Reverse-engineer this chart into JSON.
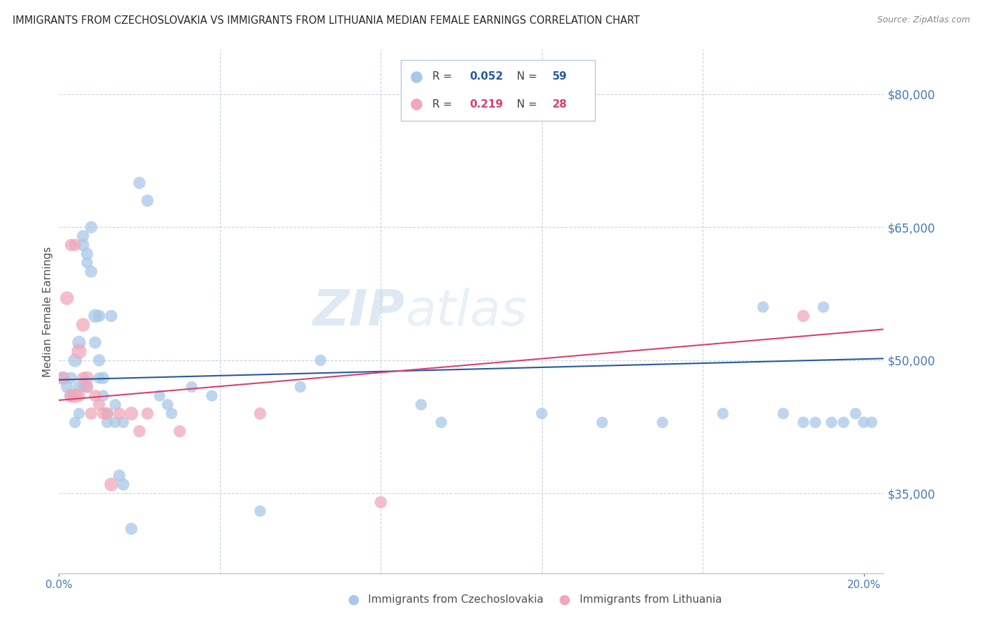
{
  "title": "IMMIGRANTS FROM CZECHOSLOVAKIA VS IMMIGRANTS FROM LITHUANIA MEDIAN FEMALE EARNINGS CORRELATION CHART",
  "source": "Source: ZipAtlas.com",
  "ylabel": "Median Female Earnings",
  "xlim": [
    0.0,
    0.205
  ],
  "ylim": [
    26000,
    85000
  ],
  "yticks": [
    35000,
    50000,
    65000,
    80000
  ],
  "ytick_labels": [
    "$35,000",
    "$50,000",
    "$65,000",
    "$80,000"
  ],
  "xticks": [
    0.0,
    0.2
  ],
  "xtick_labels": [
    "0.0%",
    "20.0%"
  ],
  "watermark_zip": "ZIP",
  "watermark_atlas": "atlas",
  "color_blue": "#a8c8e8",
  "color_pink": "#f0a8bc",
  "line_color_blue": "#2858a0",
  "line_color_pink": "#d84070",
  "background_color": "#ffffff",
  "grid_color": "#c8d4e4",
  "title_color": "#282828",
  "tick_color": "#4878b8",
  "ylabel_color": "#505050",
  "czecho_x": [
    0.001,
    0.002,
    0.003,
    0.003,
    0.004,
    0.004,
    0.005,
    0.005,
    0.005,
    0.006,
    0.006,
    0.006,
    0.007,
    0.007,
    0.007,
    0.008,
    0.008,
    0.009,
    0.009,
    0.01,
    0.01,
    0.01,
    0.011,
    0.011,
    0.012,
    0.012,
    0.013,
    0.014,
    0.014,
    0.015,
    0.016,
    0.016,
    0.018,
    0.02,
    0.022,
    0.025,
    0.027,
    0.028,
    0.033,
    0.038,
    0.05,
    0.06,
    0.065,
    0.09,
    0.095,
    0.12,
    0.135,
    0.15,
    0.165,
    0.175,
    0.18,
    0.185,
    0.188,
    0.19,
    0.192,
    0.195,
    0.198,
    0.2,
    0.202
  ],
  "czecho_y": [
    48000,
    47000,
    48000,
    46000,
    50000,
    43000,
    52000,
    47000,
    44000,
    63000,
    64000,
    47000,
    62000,
    61000,
    47000,
    65000,
    60000,
    55000,
    52000,
    55000,
    50000,
    48000,
    48000,
    46000,
    44000,
    43000,
    55000,
    45000,
    43000,
    37000,
    36000,
    43000,
    31000,
    70000,
    68000,
    46000,
    45000,
    44000,
    47000,
    46000,
    33000,
    47000,
    50000,
    45000,
    43000,
    44000,
    43000,
    43000,
    44000,
    56000,
    44000,
    43000,
    43000,
    56000,
    43000,
    43000,
    44000,
    43000,
    43000
  ],
  "czecho_sizes": [
    200,
    160,
    160,
    140,
    200,
    140,
    200,
    160,
    140,
    160,
    160,
    140,
    160,
    140,
    140,
    160,
    160,
    200,
    160,
    160,
    160,
    140,
    160,
    140,
    160,
    140,
    160,
    140,
    140,
    160,
    160,
    140,
    160,
    160,
    160,
    140,
    140,
    140,
    140,
    140,
    140,
    140,
    140,
    140,
    140,
    140,
    140,
    140,
    140,
    140,
    140,
    140,
    140,
    140,
    140,
    140,
    140,
    140,
    140
  ],
  "lithu_x": [
    0.001,
    0.002,
    0.003,
    0.003,
    0.004,
    0.004,
    0.005,
    0.005,
    0.006,
    0.006,
    0.007,
    0.007,
    0.008,
    0.009,
    0.01,
    0.011,
    0.012,
    0.013,
    0.015,
    0.018,
    0.02,
    0.022,
    0.03,
    0.05,
    0.08,
    0.185
  ],
  "lithu_y": [
    48000,
    57000,
    63000,
    46000,
    63000,
    46000,
    51000,
    46000,
    54000,
    48000,
    48000,
    47000,
    44000,
    46000,
    45000,
    44000,
    44000,
    36000,
    44000,
    44000,
    42000,
    44000,
    42000,
    44000,
    34000,
    55000
  ],
  "lithu_sizes": [
    160,
    200,
    160,
    200,
    160,
    220,
    240,
    160,
    200,
    160,
    200,
    160,
    160,
    160,
    160,
    160,
    160,
    200,
    160,
    200,
    160,
    160,
    160,
    160,
    160,
    160
  ],
  "blue_line_x": [
    0.0,
    0.205
  ],
  "blue_line_y": [
    47800,
    50200
  ],
  "pink_line_x": [
    0.0,
    0.205
  ],
  "pink_line_y": [
    45500,
    53500
  ]
}
